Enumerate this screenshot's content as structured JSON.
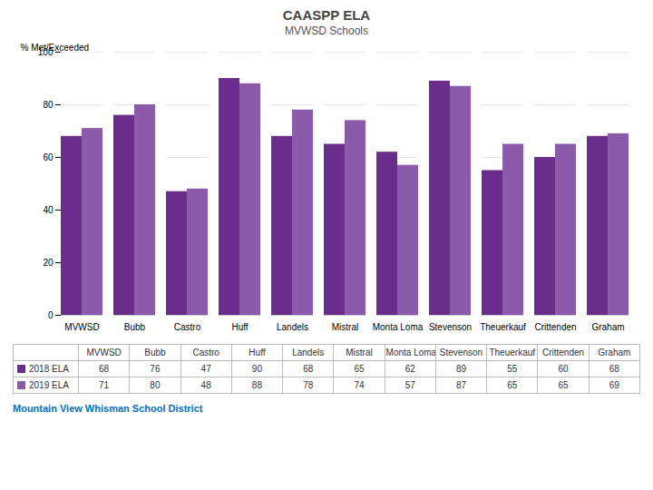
{
  "chart_data": {
    "type": "bar",
    "title": "CAASPP ELA",
    "subtitle": "MVWSD Schools",
    "ylabel": "% Met/Exceeded",
    "categories": [
      "MVWSD",
      "Bubb",
      "Castro",
      "Huff",
      "Landels",
      "Mistral",
      "Monta Loma",
      "Stevenson",
      "Theuerkauf",
      "Crittenden",
      "Graham"
    ],
    "series": [
      {
        "name": "2018 ELA",
        "color": "#6B2D8B",
        "values": [
          68,
          76,
          47,
          90,
          68,
          65,
          62,
          89,
          55,
          60,
          68
        ]
      },
      {
        "name": "2019 ELA",
        "color": "#8B5AAB",
        "values": [
          71,
          80,
          48,
          88,
          78,
          74,
          57,
          87,
          65,
          65,
          69
        ]
      }
    ],
    "ylim": [
      0,
      100
    ],
    "yticks": [
      0,
      20,
      40,
      60,
      80,
      100
    ],
    "grid": true,
    "legend": "bottom",
    "annotations": [
      "Mountain View Whisman School District"
    ]
  }
}
